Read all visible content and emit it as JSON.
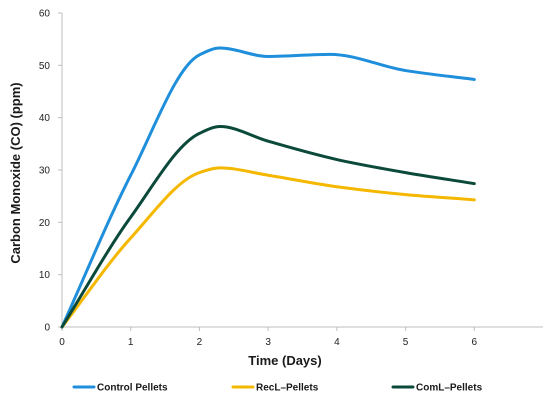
{
  "chart_data": {
    "type": "line",
    "title": "",
    "xlabel": "Time (Days)",
    "ylabel": "Carbon Monoxide (CO) (ppm)",
    "xlim": [
      0,
      7
    ],
    "ylim": [
      0,
      60
    ],
    "xticks": [
      0,
      1,
      2,
      3,
      4,
      5,
      6
    ],
    "yticks": [
      0,
      10,
      20,
      30,
      40,
      50,
      60
    ],
    "grid": false,
    "legend_position": "bottom",
    "series": [
      {
        "name": "Control Pellets",
        "color": "#1f8fdc",
        "x": [
          0,
          1,
          2,
          2.3,
          3,
          3.9,
          5,
          6
        ],
        "y": [
          0,
          29,
          52,
          53.3,
          51.7,
          52.1,
          49,
          47.3
        ]
      },
      {
        "name": "RecL–Pellets",
        "color": "#f5b800",
        "x": [
          0,
          1,
          2,
          2.3,
          3,
          4,
          5,
          6
        ],
        "y": [
          0,
          17,
          29.5,
          30.4,
          29,
          26.8,
          25.3,
          24.3
        ]
      },
      {
        "name": "ComL–Pellets",
        "color": "#0b4a3a",
        "x": [
          0,
          1,
          2,
          2.3,
          3,
          4,
          5,
          6
        ],
        "y": [
          0,
          21,
          37,
          38.3,
          35.5,
          32,
          29.5,
          27.4
        ]
      }
    ]
  }
}
